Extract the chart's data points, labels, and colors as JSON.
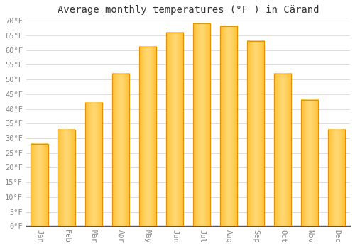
{
  "title": "Average monthly temperatures (°F ) in Cărand",
  "months": [
    "Jan",
    "Feb",
    "Mar",
    "Apr",
    "May",
    "Jun",
    "Jul",
    "Aug",
    "Sep",
    "Oct",
    "Nov",
    "Dec"
  ],
  "values": [
    28,
    33,
    42,
    52,
    61,
    66,
    69,
    68,
    63,
    52,
    43,
    33
  ],
  "bar_color_main": "#FFC53A",
  "bar_color_edge": "#E8900A",
  "bar_color_light": "#FFD97A",
  "background_color": "#FFFFFF",
  "plot_bg_color": "#FFFFFF",
  "grid_color": "#DDDDDD",
  "ylim": [
    0,
    70
  ],
  "ytick_step": 5,
  "title_fontsize": 10,
  "tick_fontsize": 7.5,
  "label_color": "#888888",
  "title_color": "#333333",
  "figsize": [
    5.0,
    3.5
  ],
  "dpi": 100,
  "bar_width": 0.65
}
